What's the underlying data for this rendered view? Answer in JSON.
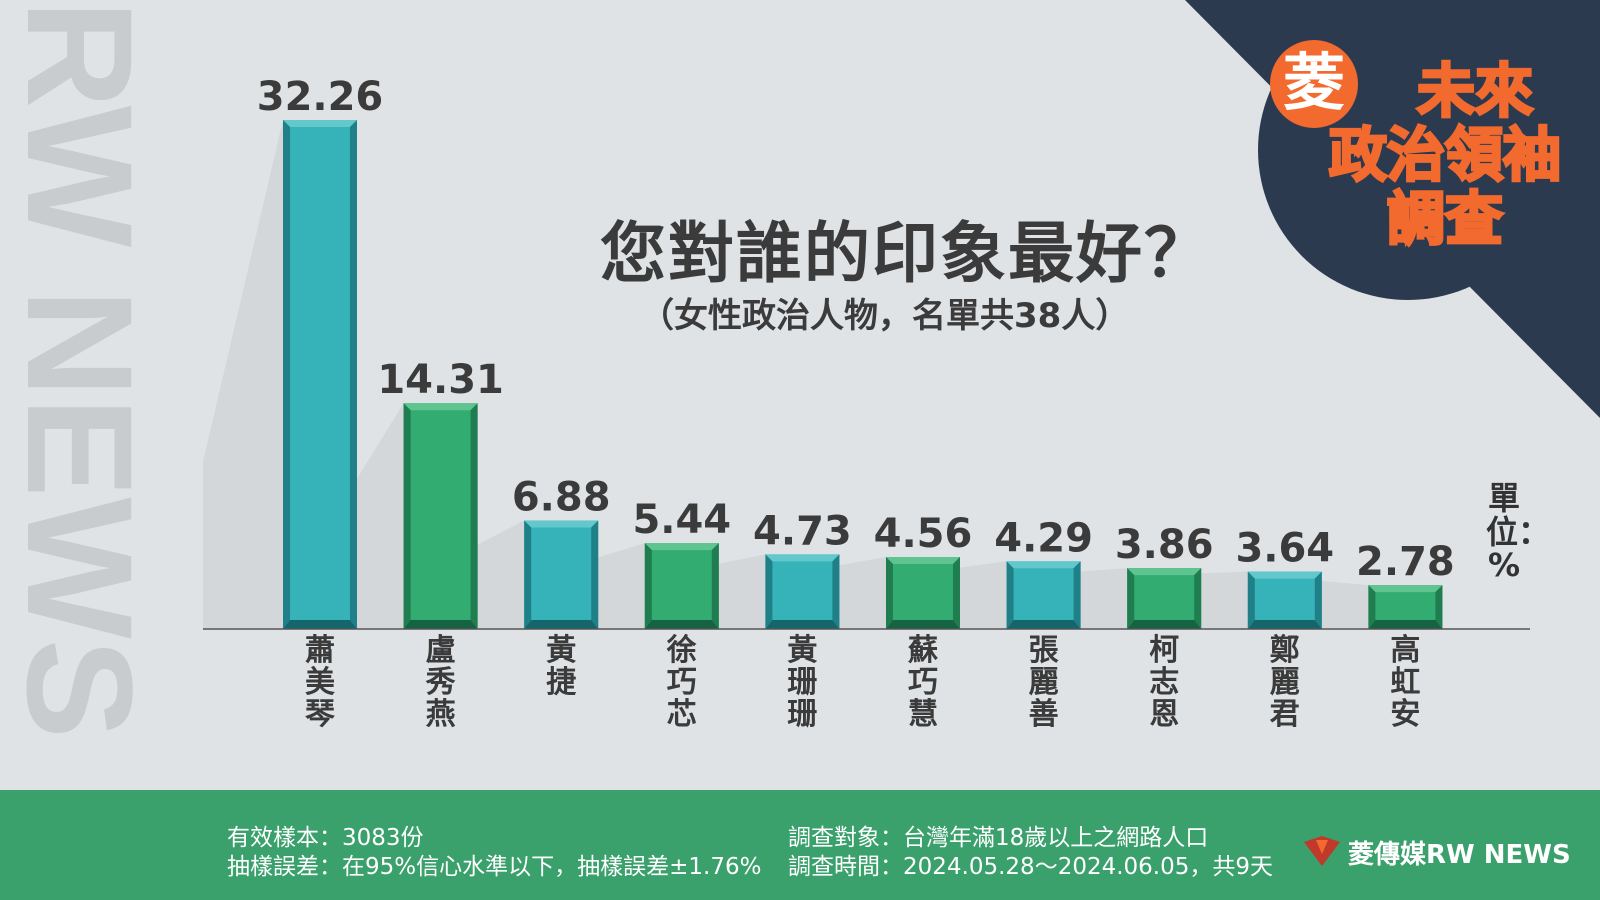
{
  "headline": "您對誰的印象最好？",
  "subhead": "（女性政治人物，名單共38人）",
  "unit_label": "單位：%",
  "badge": {
    "circle": "菱",
    "line1": "未來",
    "line2": "政治領袖",
    "line3": "調查"
  },
  "watermark": "RW NEWS",
  "footer": {
    "sample": "有效樣本：3083份",
    "error": "抽樣誤差：在95%信心水準以下，抽樣誤差±1.76%",
    "target": "調查對象：台灣年滿18歲以上之網路人口",
    "period": "調查時間：2024.05.28～2024.06.05，共9天",
    "logo": "菱傳媒RW NEWS"
  },
  "colors": {
    "teal": "#35b3b9",
    "green": "#33ac72",
    "navy": "#2c3a50",
    "orange": "#f26a2e",
    "footer": "#3aa06c"
  },
  "chart_data": {
    "type": "bar",
    "categories": [
      "蕭美琴",
      "盧秀燕",
      "黃捷",
      "徐巧芯",
      "黃珊珊",
      "蘇巧慧",
      "張麗善",
      "柯志恩",
      "鄭麗君",
      "高虹安"
    ],
    "values": [
      32.26,
      14.31,
      6.88,
      5.44,
      4.73,
      4.56,
      4.29,
      3.86,
      3.64,
      2.78
    ],
    "value_labels": [
      "32.26",
      "14.31",
      "6.88",
      "5.44",
      "4.73",
      "4.56",
      "4.29",
      "3.86",
      "3.64",
      "2.78"
    ],
    "bar_colors": [
      "teal",
      "green",
      "teal",
      "green",
      "teal",
      "green",
      "teal",
      "green",
      "teal",
      "green"
    ],
    "title": "您對誰的印象最好？",
    "subtitle": "（女性政治人物，名單共38人）",
    "ylabel": "單位：%",
    "ylim": [
      0,
      32.26
    ],
    "grid": false,
    "legend": "none"
  }
}
